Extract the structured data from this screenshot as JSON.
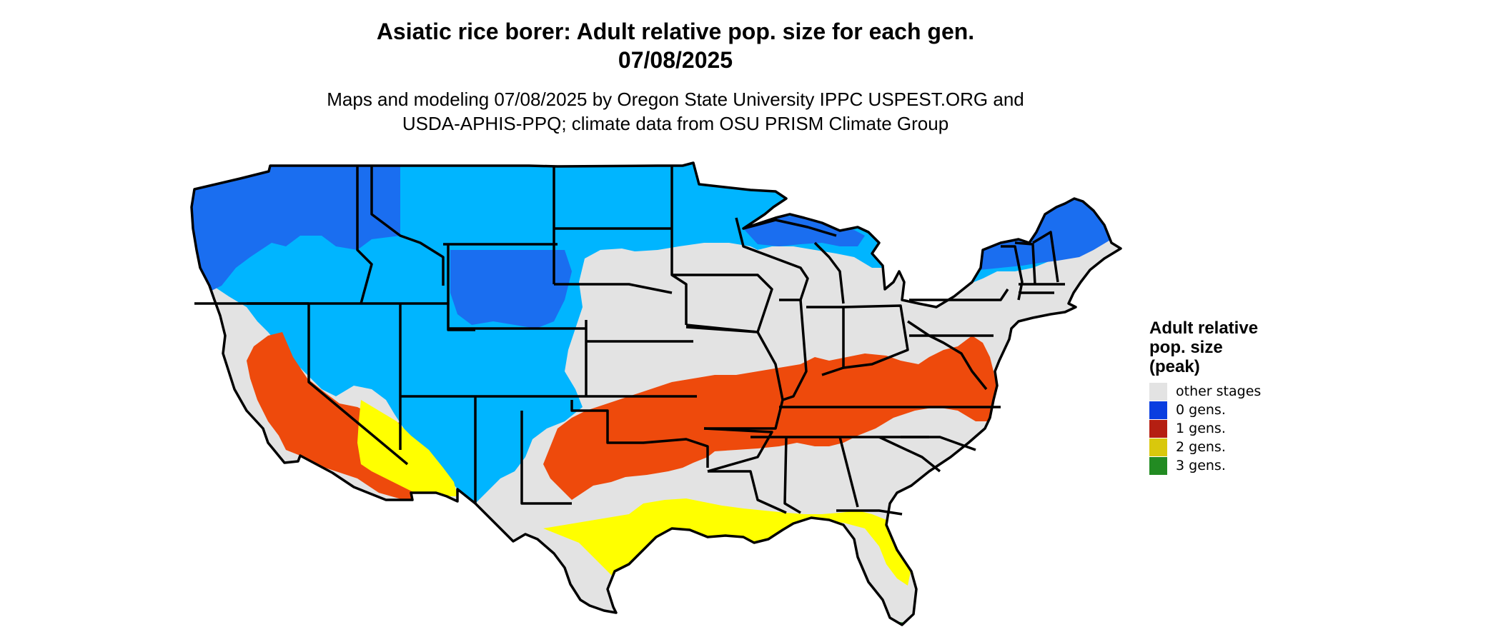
{
  "title": {
    "line1": "Asiatic rice borer: Adult relative pop. size for each gen.",
    "line2": "07/08/2025"
  },
  "subtitle": {
    "line1": "Maps and modeling 07/08/2025 by Oregon State University IPPC USPEST.ORG and",
    "line2": "USDA-APHIS-PPQ; climate data from OSU PRISM Climate Group"
  },
  "legend": {
    "title_line1": "Adult relative",
    "title_line2": "pop. size",
    "title_line3": "(peak)",
    "items": [
      {
        "label": "other stages",
        "color": "#e3e3e3"
      },
      {
        "label": "0 gens.",
        "color": "#0a3ee0"
      },
      {
        "label": "1 gens.",
        "color": "#b51f12"
      },
      {
        "label": "2 gens.",
        "color": "#d9c80c"
      },
      {
        "label": "3 gens.",
        "color": "#228b22"
      }
    ]
  },
  "map_colors": {
    "other_stages": "#e3e3e3",
    "zero_gens_light": "#00b5ff",
    "zero_gens_dark": "#1a6ef0",
    "one_gens": "#ee4a0c",
    "two_gens": "#ffff00",
    "three_gens": "#228b22",
    "border": "#000000"
  }
}
